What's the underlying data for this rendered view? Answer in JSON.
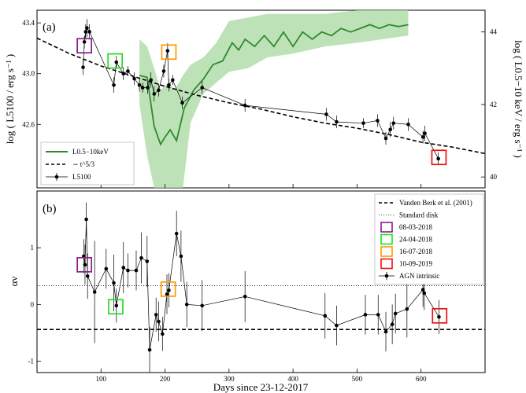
{
  "chart_data": [
    {
      "panel_label": "(a)",
      "type": "line",
      "ylabel_left": "log ( L5100 / erg s⁻¹ )",
      "ylabel_right": "log ( L0.5−10 keV / erg s⁻¹ )",
      "xlim": [
        0,
        700
      ],
      "ylim": [
        42.1,
        43.5
      ],
      "ylim_right": [
        39.7,
        44.6
      ],
      "yticks": [
        42.6,
        43.0,
        43.4
      ],
      "yticks_right": [
        40,
        42,
        44
      ],
      "legend_position": "bottom-left",
      "legend": [
        "L0.5−10keV",
        "∼ t^5/3",
        "L5100"
      ],
      "series": [
        {
          "name": "L5100",
          "color": "#000000",
          "points": [
            [
              72,
              43.05,
              0.06
            ],
            [
              74,
              43.25,
              0.05
            ],
            [
              76,
              43.33,
              0.06
            ],
            [
              78,
              43.36,
              0.07
            ],
            [
              82,
              43.33,
              0.06
            ],
            [
              120,
              42.91,
              0.06
            ],
            [
              124,
              43.09,
              0.05
            ],
            [
              135,
              43.0,
              0.05
            ],
            [
              142,
              43.02,
              0.04
            ],
            [
              152,
              42.96,
              0.05
            ],
            [
              160,
              42.91,
              0.05
            ],
            [
              165,
              42.89,
              0.04
            ],
            [
              173,
              42.89,
              0.05
            ],
            [
              178,
              42.95,
              0.06
            ],
            [
              183,
              42.84,
              0.06
            ],
            [
              190,
              42.87,
              0.05
            ],
            [
              198,
              43.02,
              0.05
            ],
            [
              204,
              43.18,
              0.06
            ],
            [
              206,
              42.91,
              0.05
            ],
            [
              212,
              42.95,
              0.04
            ],
            [
              227,
              42.77,
              0.05
            ],
            [
              258,
              42.89,
              0.05
            ],
            [
              325,
              42.75,
              0.05
            ],
            [
              452,
              42.68,
              0.05
            ],
            [
              468,
              42.62,
              0.05
            ],
            [
              510,
              42.61,
              0.04
            ],
            [
              532,
              42.63,
              0.05
            ],
            [
              545,
              42.49,
              0.05
            ],
            [
              552,
              42.56,
              0.06
            ],
            [
              557,
              42.61,
              0.05
            ],
            [
              580,
              42.6,
              0.05
            ],
            [
              603,
              42.5,
              0.05
            ],
            [
              606,
              42.53,
              0.06
            ],
            [
              627,
              42.33,
              0.05
            ]
          ]
        },
        {
          "name": "L0.5−10keV",
          "color": "#2e8b2e",
          "band_color": "#a8d8a0",
          "points": [
            [
              160,
              42.8
            ],
            [
              172,
              42.75
            ],
            [
              183,
              41.4
            ],
            [
              193,
              40.9
            ],
            [
              200,
              41.1
            ],
            [
              208,
              41.3
            ],
            [
              218,
              41.0
            ],
            [
              230,
              41.9
            ],
            [
              245,
              42.4
            ],
            [
              260,
              42.7
            ],
            [
              275,
              43.1
            ],
            [
              290,
              43.2
            ],
            [
              305,
              43.7
            ],
            [
              315,
              43.5
            ],
            [
              325,
              43.8
            ],
            [
              340,
              43.6
            ],
            [
              355,
              43.9
            ],
            [
              370,
              43.6
            ],
            [
              385,
              44.0
            ],
            [
              400,
              43.6
            ],
            [
              415,
              44.0
            ],
            [
              430,
              43.8
            ],
            [
              445,
              44.0
            ],
            [
              460,
              43.9
            ],
            [
              475,
              44.1
            ],
            [
              490,
              44.0
            ],
            [
              505,
              44.1
            ],
            [
              520,
              44.2
            ],
            [
              535,
              44.1
            ],
            [
              550,
              44.2
            ],
            [
              565,
              44.15
            ],
            [
              580,
              44.2
            ]
          ],
          "band": [
            [
              160,
              42.0,
              43.8
            ],
            [
              172,
              40.6,
              43.6
            ],
            [
              183,
              38.9,
              43.0
            ],
            [
              193,
              38.6,
              42.4
            ],
            [
              205,
              38.9,
              42.6
            ],
            [
              215,
              38.5,
              42.4
            ],
            [
              228,
              38.7,
              42.8
            ],
            [
              240,
              41.5,
              43.1
            ],
            [
              260,
              42.3,
              43.3
            ],
            [
              280,
              42.6,
              43.7
            ],
            [
              300,
              42.9,
              44.3
            ],
            [
              330,
              43.0,
              44.4
            ],
            [
              360,
              43.3,
              44.5
            ],
            [
              400,
              43.4,
              44.5
            ],
            [
              450,
              43.6,
              44.5
            ],
            [
              500,
              43.7,
              44.6
            ],
            [
              540,
              43.8,
              44.6
            ],
            [
              580,
              43.9,
              44.6
            ]
          ]
        }
      ],
      "powerlaw_curve": {
        "name": "∼ t^5/3",
        "points": [
          [
            0,
            43.28
          ],
          [
            50,
            43.16
          ],
          [
            100,
            43.06
          ],
          [
            150,
            42.98
          ],
          [
            200,
            42.9
          ],
          [
            250,
            42.83
          ],
          [
            300,
            42.77
          ],
          [
            350,
            42.72
          ],
          [
            400,
            42.66
          ],
          [
            450,
            42.61
          ],
          [
            500,
            42.57
          ],
          [
            550,
            42.52
          ],
          [
            600,
            42.46
          ],
          [
            650,
            42.42
          ],
          [
            700,
            42.37
          ]
        ]
      },
      "highlight_boxes": [
        {
          "x": 74,
          "y": 43.22,
          "color": "#8b1a8b"
        },
        {
          "x": 122,
          "y": 43.1,
          "color": "#22dd22"
        },
        {
          "x": 206,
          "y": 43.17,
          "color": "#ff9900"
        },
        {
          "x": 628,
          "y": 42.34,
          "color": "#ee1111"
        }
      ]
    },
    {
      "panel_label": "(b)",
      "type": "scatter",
      "xlabel": "Days since 23-12-2017",
      "ylabel": "αν",
      "xlim": [
        0,
        700
      ],
      "ylim": [
        -1.2,
        2.0
      ],
      "yticks": [
        -1,
        0,
        1
      ],
      "xticks": [
        100,
        200,
        300,
        400,
        500,
        600
      ],
      "legend_position": "top-right",
      "legend": [
        {
          "label": "Vanden Berk et al. (2001)",
          "style": "dashed"
        },
        {
          "label": "Standard disk",
          "style": "dotted"
        },
        {
          "label": "08-03-2018",
          "style": "box",
          "color": "#8b1a8b"
        },
        {
          "label": "24-04-2018",
          "style": "box",
          "color": "#22dd22"
        },
        {
          "label": "16-07-2018",
          "style": "box",
          "color": "#ff9900"
        },
        {
          "label": "10-09-2019",
          "style": "box",
          "color": "#ee1111"
        },
        {
          "label": "AGN intrinsic",
          "style": "point"
        }
      ],
      "reference_lines": {
        "vanden_berk": -0.44,
        "standard_disk": 0.33
      },
      "series": [
        {
          "name": "AGN intrinsic",
          "color": "#000000",
          "points": [
            [
              73,
              0.85,
              0.3
            ],
            [
              75,
              0.7,
              0.35
            ],
            [
              77,
              1.5,
              0.3
            ],
            [
              79,
              0.5,
              0.4
            ],
            [
              90,
              0.22,
              0.9
            ],
            [
              108,
              0.63,
              0.35
            ],
            [
              120,
              0.38,
              0.5
            ],
            [
              124,
              -0.02,
              0.3
            ],
            [
              135,
              0.65,
              0.45
            ],
            [
              142,
              0.6,
              0.3
            ],
            [
              155,
              0.6,
              0.35
            ],
            [
              163,
              0.82,
              0.45
            ],
            [
              172,
              0.76,
              0.45
            ],
            [
              176,
              -0.8,
              0.4
            ],
            [
              186,
              -0.18,
              0.3
            ],
            [
              190,
              -0.3,
              0.35
            ],
            [
              196,
              -0.52,
              0.3
            ],
            [
              203,
              0.18,
              0.35
            ],
            [
              206,
              0.25,
              0.3
            ],
            [
              218,
              1.25,
              0.4
            ],
            [
              225,
              0.85,
              0.45
            ],
            [
              234,
              0.0,
              0.4
            ],
            [
              258,
              -0.02,
              0.45
            ],
            [
              325,
              0.14,
              0.45
            ],
            [
              450,
              -0.2,
              0.4
            ],
            [
              468,
              -0.37,
              0.35
            ],
            [
              513,
              -0.18,
              0.35
            ],
            [
              533,
              -0.18,
              0.35
            ],
            [
              545,
              -0.48,
              0.35
            ],
            [
              555,
              -0.35,
              0.35
            ],
            [
              560,
              -0.16,
              0.35
            ],
            [
              578,
              -0.08,
              0.5
            ],
            [
              603,
              0.26,
              0.3
            ],
            [
              605,
              0.2,
              0.3
            ],
            [
              628,
              -0.22,
              0.3
            ]
          ]
        }
      ],
      "highlight_boxes": [
        {
          "x": 74,
          "y": 0.7,
          "color": "#8b1a8b"
        },
        {
          "x": 123,
          "y": -0.04,
          "color": "#22dd22"
        },
        {
          "x": 205,
          "y": 0.27,
          "color": "#ff9900"
        },
        {
          "x": 629,
          "y": -0.2,
          "color": "#ee1111"
        }
      ]
    }
  ]
}
